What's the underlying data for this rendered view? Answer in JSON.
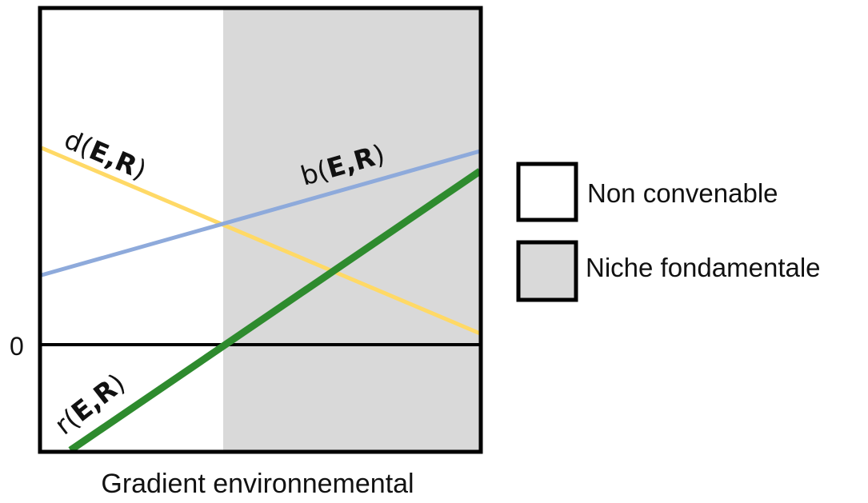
{
  "diagram": {
    "zero_label": "0",
    "x_axis_label": "Gradient environnemental",
    "regions": [
      {
        "name": "Non convenable",
        "color": "#ffffff"
      },
      {
        "name": "Niche fondamentale",
        "color": "#d9d9d9"
      }
    ],
    "curves": {
      "d": {
        "name": "d",
        "args": "E,R",
        "color": "#ffd966"
      },
      "b": {
        "name": "b",
        "args": "E,R",
        "color": "#8eaadb"
      },
      "r": {
        "name": "r",
        "args": "E,R",
        "color": "#2e8b2e"
      }
    },
    "legend": [
      {
        "label": "Non convenable",
        "swatch": "#ffffff"
      },
      {
        "label": "Niche fondamentale",
        "swatch": "#d9d9d9"
      }
    ]
  }
}
